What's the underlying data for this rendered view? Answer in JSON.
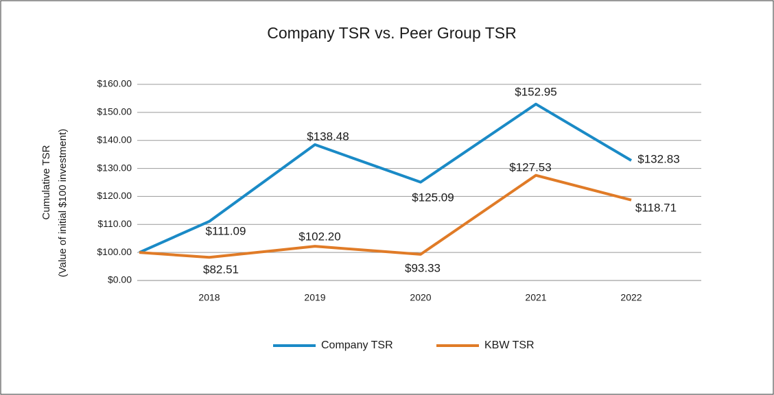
{
  "chart_data": {
    "type": "line",
    "title": "Company TSR vs. Peer Group TSR",
    "y_label": [
      "Cumulative TSR",
      "(Value of initial $100 investment)"
    ],
    "categories": [
      null,
      "2018",
      "2019",
      "2020",
      "2021",
      "2022"
    ],
    "series": [
      {
        "name": "Company TSR",
        "color": "#1a8ac6",
        "values": [
          100,
          111.09,
          138.48,
          125.09,
          152.95,
          132.83
        ],
        "value_labels": [
          null,
          "$111.09",
          "$138.48",
          "$125.09",
          "$152.95",
          "$132.83"
        ]
      },
      {
        "name": "KBW TSR",
        "color": "#e07b27",
        "values": [
          100,
          82.51,
          102.2,
          93.33,
          127.53,
          118.71
        ],
        "value_labels": [
          null,
          "$82.51",
          "$102.20",
          "$93.33",
          "$127.53",
          "$118.71"
        ]
      }
    ],
    "ylim": [
      0,
      160
    ],
    "yticks": [
      {
        "value": 0,
        "label": "$0.00"
      },
      {
        "value": 100,
        "label": "$100.00"
      },
      {
        "value": 110,
        "label": "$110.00"
      },
      {
        "value": 120,
        "label": "$120.00"
      },
      {
        "value": 130,
        "label": "$130.00"
      },
      {
        "value": 140,
        "label": "$140.00"
      },
      {
        "value": 150,
        "label": "$150.00"
      },
      {
        "value": 160,
        "label": "$160.00"
      }
    ],
    "grid": true,
    "legend": "bottom"
  }
}
